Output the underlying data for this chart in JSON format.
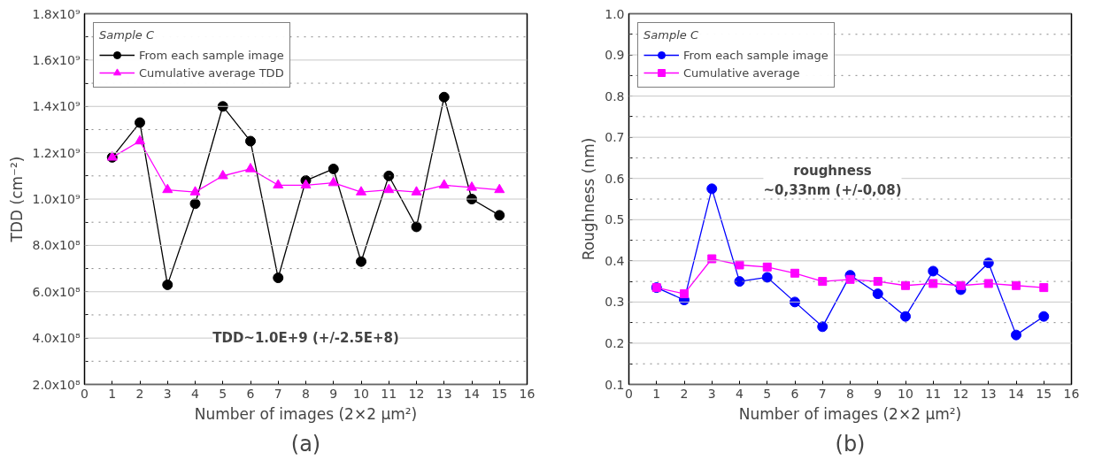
{
  "chart_data": [
    {
      "type": "line",
      "title": "(a)",
      "xlabel": "Number of images (2×2 µm²)",
      "ylabel": "TDD (cm⁻²)",
      "legend_title": "Sample C",
      "legend": "top left",
      "grid": "y",
      "x": [
        1,
        2,
        3,
        4,
        5,
        6,
        7,
        8,
        9,
        10,
        11,
        12,
        13,
        14,
        15
      ],
      "xlim": [
        0,
        16
      ],
      "xticks": [
        0,
        1,
        2,
        3,
        4,
        5,
        6,
        7,
        8,
        9,
        10,
        11,
        12,
        13,
        14,
        15,
        16
      ],
      "ylim": [
        200000000,
        1800000000
      ],
      "yticks": [
        {
          "value": 200000000,
          "label": "2.0x10⁸"
        },
        {
          "value": 300000000,
          "label": null
        },
        {
          "value": 400000000,
          "label": "4.0x10⁸"
        },
        {
          "value": 500000000,
          "label": null
        },
        {
          "value": 600000000,
          "label": "6.0x10⁸"
        },
        {
          "value": 700000000,
          "label": null
        },
        {
          "value": 800000000,
          "label": "8.0x10⁸"
        },
        {
          "value": 900000000,
          "label": null
        },
        {
          "value": 1000000000,
          "label": "1.0x10⁹"
        },
        {
          "value": 1100000000,
          "label": null
        },
        {
          "value": 1200000000,
          "label": "1.2x10⁹"
        },
        {
          "value": 1300000000,
          "label": null
        },
        {
          "value": 1400000000,
          "label": "1.4x10⁹"
        },
        {
          "value": 1500000000,
          "label": null
        },
        {
          "value": 1600000000,
          "label": "1.6x10⁹"
        },
        {
          "value": 1700000000,
          "label": null
        },
        {
          "value": 1800000000,
          "label": "1.8x10⁹"
        }
      ],
      "series": [
        {
          "name": "From each sample image",
          "color": "#000000",
          "marker": "circle",
          "values": [
            1180000000,
            1330000000,
            630000000,
            980000000,
            1400000000,
            1250000000,
            660000000,
            1080000000,
            1130000000,
            730000000,
            1100000000,
            880000000,
            1440000000,
            1000000000,
            930000000
          ]
        },
        {
          "name": "Cumulative average TDD",
          "color": "#ff00ff",
          "marker": "triangle",
          "values": [
            1180000000,
            1250000000,
            1040000000,
            1030000000,
            1100000000,
            1130000000,
            1060000000,
            1060000000,
            1070000000,
            1030000000,
            1040000000,
            1030000000,
            1060000000,
            1050000000,
            1040000000
          ]
        }
      ],
      "annotations": [
        "TDD~1.0E+9 (+/-2.5E+8)"
      ]
    },
    {
      "type": "line",
      "title": "(b)",
      "xlabel": "Number of images (2×2 µm²)",
      "ylabel": "Roughness (nm)",
      "legend_title": "Sample C",
      "legend": "top left",
      "grid": "y",
      "x": [
        1,
        2,
        3,
        4,
        5,
        6,
        7,
        8,
        9,
        10,
        11,
        12,
        13,
        14,
        15
      ],
      "xlim": [
        0,
        16
      ],
      "xticks": [
        0,
        1,
        2,
        3,
        4,
        5,
        6,
        7,
        8,
        9,
        10,
        11,
        12,
        13,
        14,
        15,
        16
      ],
      "ylim": [
        0.1,
        1.0
      ],
      "yticks": [
        {
          "value": 0.1,
          "label": "0.1"
        },
        {
          "value": 0.15,
          "label": null
        },
        {
          "value": 0.2,
          "label": "0.2"
        },
        {
          "value": 0.25,
          "label": null
        },
        {
          "value": 0.3,
          "label": "0.3"
        },
        {
          "value": 0.35,
          "label": null
        },
        {
          "value": 0.4,
          "label": "0.4"
        },
        {
          "value": 0.45,
          "label": null
        },
        {
          "value": 0.5,
          "label": "0.5"
        },
        {
          "value": 0.55,
          "label": null
        },
        {
          "value": 0.6,
          "label": "0.6"
        },
        {
          "value": 0.65,
          "label": null
        },
        {
          "value": 0.7,
          "label": "0.7"
        },
        {
          "value": 0.75,
          "label": null
        },
        {
          "value": 0.8,
          "label": "0.8"
        },
        {
          "value": 0.85,
          "label": null
        },
        {
          "value": 0.9,
          "label": "0.9"
        },
        {
          "value": 0.95,
          "label": null
        },
        {
          "value": 1.0,
          "label": "1.0"
        }
      ],
      "series": [
        {
          "name": "From each sample image",
          "color": "#0000ff",
          "marker": "circle",
          "values": [
            0.335,
            0.305,
            0.575,
            0.35,
            0.36,
            0.3,
            0.24,
            0.365,
            0.32,
            0.265,
            0.375,
            0.33,
            0.395,
            0.22,
            0.265
          ]
        },
        {
          "name": "Cumulative average",
          "color": "#ff00ff",
          "marker": "square",
          "values": [
            0.335,
            0.32,
            0.405,
            0.39,
            0.385,
            0.37,
            0.35,
            0.355,
            0.35,
            0.34,
            0.345,
            0.34,
            0.345,
            0.34,
            0.335
          ]
        }
      ],
      "annotations": [
        "roughness\n~0,33nm (+/-0,08)"
      ]
    }
  ]
}
